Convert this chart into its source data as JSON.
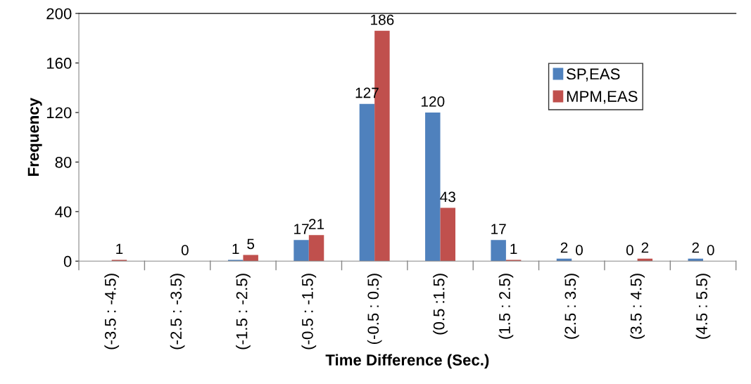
{
  "chart_data": {
    "type": "bar",
    "xlabel": "Time Difference (Sec.)",
    "ylabel": "Frequency",
    "categories": [
      "(-3.5 : -4.5)",
      "(-2.5 : -3.5)",
      "(-1.5 : -2.5)",
      "(-0.5 : -1.5)",
      "(-0.5 : 0.5)",
      "(0.5 :1.5)",
      "(1.5 : 2.5)",
      "(2.5 : 3.5)",
      "(3.5 : 4.5)",
      "(4.5 : 5.5)"
    ],
    "series": [
      {
        "name": "SP,EAS",
        "color": "#4f81bd",
        "values": [
          0,
          0,
          1,
          17,
          127,
          120,
          17,
          2,
          0,
          2
        ],
        "value_labels": [
          null,
          null,
          "1",
          "17",
          "127",
          "120",
          "17",
          "2",
          "0",
          "2"
        ]
      },
      {
        "name": "MPM,EAS",
        "color": "#c0504d",
        "values": [
          1,
          0,
          5,
          21,
          186,
          43,
          1,
          0,
          2,
          0
        ],
        "value_labels": [
          "1",
          "0",
          "5",
          "21",
          "186",
          "43",
          "1",
          "0",
          "2",
          "0"
        ]
      }
    ],
    "ylim": [
      0,
      200
    ],
    "yticks": [
      0,
      40,
      80,
      120,
      160,
      200
    ],
    "grid": false,
    "legend": "top right"
  }
}
